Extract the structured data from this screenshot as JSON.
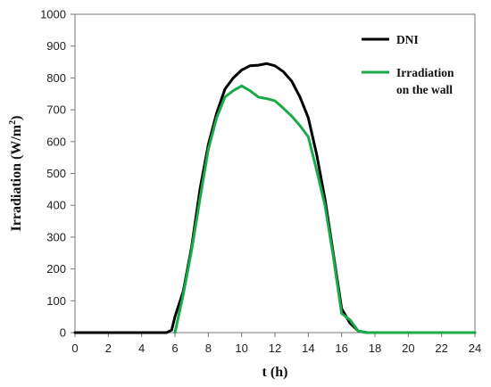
{
  "chart_data": {
    "type": "line",
    "title": "",
    "xlabel": "t  (h)",
    "ylabel_main": "Irradiation  (W/m",
    "ylabel_sup": "2",
    "ylabel_close": ")",
    "xlim": [
      0,
      24
    ],
    "ylim": [
      0,
      1000
    ],
    "xticks": [
      0,
      2,
      4,
      6,
      8,
      10,
      12,
      14,
      16,
      18,
      20,
      22,
      24
    ],
    "yticks": [
      0,
      100,
      200,
      300,
      400,
      500,
      600,
      700,
      800,
      900,
      1000
    ],
    "grid": false,
    "legend_position": "top-right",
    "series": [
      {
        "name": "DNI",
        "color": "#000000",
        "x": [
          0,
          1,
          2,
          3,
          4,
          5,
          5.5,
          5.8,
          6,
          6.5,
          7,
          7.5,
          8,
          8.5,
          9,
          9.5,
          10,
          10.5,
          11,
          11.5,
          12,
          12.5,
          13,
          13.5,
          14,
          14.5,
          15,
          15.5,
          16,
          16.5,
          17,
          17.5,
          18,
          19,
          20,
          21,
          22,
          23,
          24
        ],
        "y": [
          0,
          0,
          0,
          0,
          0,
          0,
          0,
          8,
          50,
          130,
          270,
          450,
          590,
          690,
          765,
          800,
          825,
          838,
          840,
          845,
          838,
          820,
          790,
          740,
          675,
          560,
          420,
          250,
          75,
          30,
          5,
          0,
          0,
          0,
          0,
          0,
          0,
          0,
          0
        ]
      },
      {
        "name": "Irradiation\non the wall",
        "legend_lines": [
          "Irradiation",
          "on the wall"
        ],
        "color": "#1aaa4a",
        "x": [
          6,
          6.5,
          7,
          7.5,
          8,
          8.5,
          9,
          9.5,
          10,
          10.5,
          11,
          11.5,
          12,
          12.5,
          13,
          13.5,
          14,
          14.5,
          15,
          15.5,
          16,
          16.5,
          17,
          17.5,
          18,
          19,
          20,
          21,
          22,
          23,
          24
        ],
        "y": [
          0,
          120,
          260,
          420,
          575,
          675,
          740,
          760,
          775,
          760,
          740,
          735,
          728,
          705,
          680,
          650,
          615,
          510,
          400,
          240,
          60,
          40,
          5,
          0,
          0,
          0,
          0,
          0,
          0,
          0,
          0
        ]
      }
    ]
  }
}
